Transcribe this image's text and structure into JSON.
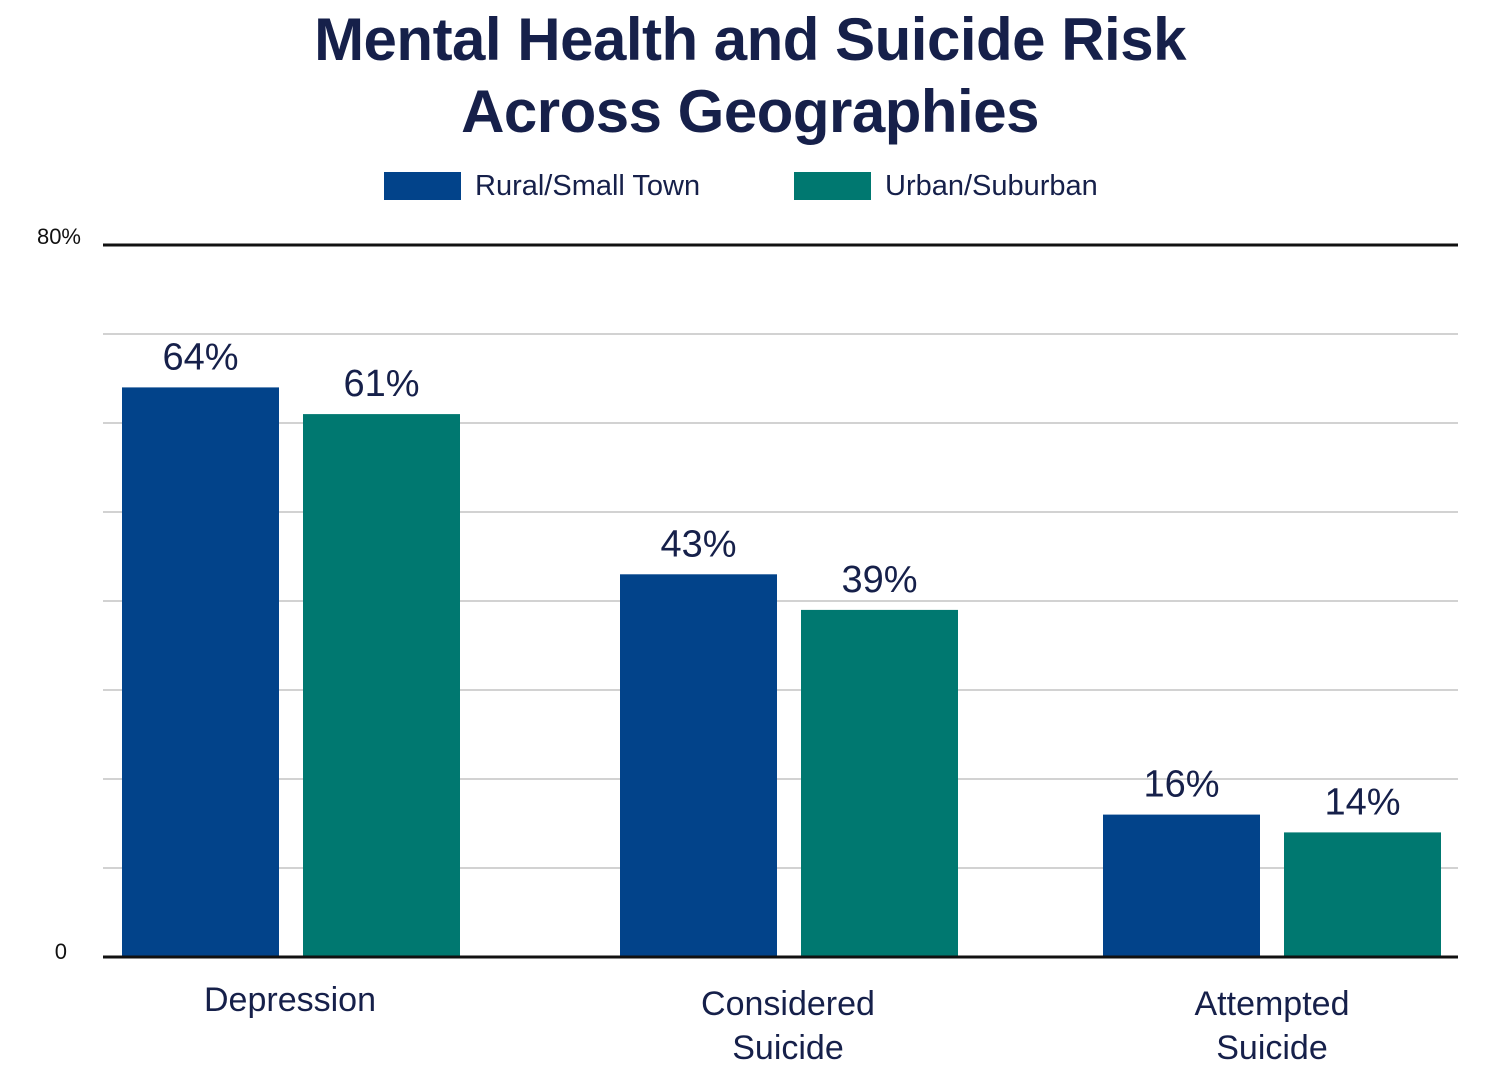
{
  "title_lines": [
    "Mental Health and Suicide Risk",
    "Across Geographies"
  ],
  "chart_data": {
    "type": "bar",
    "title": "Mental Health and Suicide Risk Across Geographies",
    "categories": [
      [
        "Depression"
      ],
      [
        "Considered",
        "Suicide"
      ],
      [
        "Attempted",
        "Suicide"
      ]
    ],
    "series": [
      {
        "name": "Rural/Small Town",
        "color": "#02438a",
        "values": [
          64,
          43,
          16
        ],
        "labels": [
          "64%",
          "43%",
          "16%"
        ]
      },
      {
        "name": "Urban/Suburban",
        "color": "#007870",
        "values": [
          61,
          39,
          14
        ],
        "labels": [
          "61%",
          "39%",
          "14%"
        ]
      }
    ],
    "ylim": [
      0,
      80
    ],
    "ytick_labels": {
      "0": "0",
      "80": "80%"
    },
    "gridlines_every": 10,
    "grid": true,
    "legend": "top-center"
  }
}
